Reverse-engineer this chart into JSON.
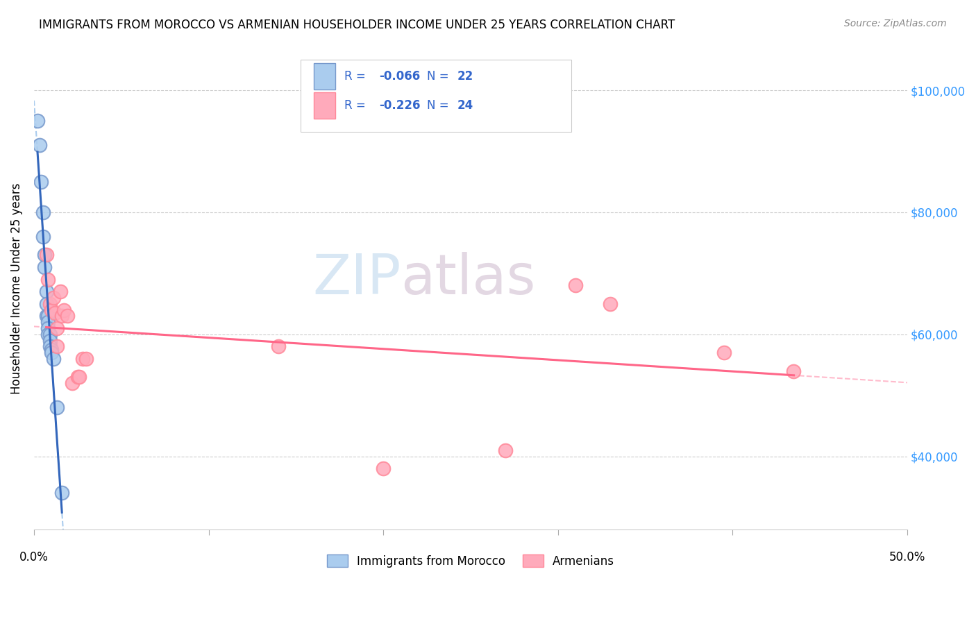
{
  "title": "IMMIGRANTS FROM MOROCCO VS ARMENIAN HOUSEHOLDER INCOME UNDER 25 YEARS CORRELATION CHART",
  "source": "Source: ZipAtlas.com",
  "ylabel": "Householder Income Under 25 years",
  "legend_label_blue": "Immigrants from Morocco",
  "legend_label_pink": "Armenians",
  "watermark_zip": "ZIP",
  "watermark_atlas": "atlas",
  "blue_color_face": "#aaccee",
  "blue_color_edge": "#7799CC",
  "pink_color_face": "#ffaabb",
  "pink_color_edge": "#FF8899",
  "blue_line_color": "#3366BB",
  "pink_line_color": "#FF6688",
  "blue_dash_color": "#aaccee",
  "pink_dash_color": "#ffbbcc",
  "right_tick_color": "#3399FF",
  "background": "#FFFFFF",
  "blue_x": [
    0.002,
    0.003,
    0.004,
    0.005,
    0.005,
    0.006,
    0.006,
    0.007,
    0.007,
    0.007,
    0.008,
    0.008,
    0.008,
    0.008,
    0.009,
    0.009,
    0.009,
    0.01,
    0.01,
    0.011,
    0.013,
    0.016
  ],
  "blue_y": [
    95000,
    91000,
    85000,
    80000,
    76000,
    73000,
    71000,
    67000,
    65000,
    63000,
    63000,
    62000,
    61000,
    60000,
    60000,
    59000,
    58000,
    57500,
    57000,
    56000,
    48000,
    34000
  ],
  "pink_x": [
    0.007,
    0.008,
    0.009,
    0.01,
    0.011,
    0.012,
    0.013,
    0.013,
    0.015,
    0.016,
    0.017,
    0.019,
    0.022,
    0.025,
    0.026,
    0.028,
    0.03,
    0.14,
    0.2,
    0.27,
    0.31,
    0.33,
    0.395,
    0.435
  ],
  "pink_y": [
    73000,
    69000,
    65000,
    64000,
    66000,
    63500,
    61000,
    58000,
    67000,
    63000,
    64000,
    63000,
    52000,
    53000,
    53000,
    56000,
    56000,
    58000,
    38000,
    41000,
    68000,
    65000,
    57000,
    54000
  ],
  "xlim": [
    0.0,
    0.5
  ],
  "ylim": [
    28000,
    107000
  ],
  "yticks": [
    40000,
    60000,
    80000,
    100000
  ],
  "right_ytick_labels": [
    "$40,000",
    "$60,000",
    "$80,000",
    "$100,000"
  ],
  "title_fontsize": 12,
  "source_fontsize": 10,
  "ylabel_fontsize": 12,
  "tick_fontsize": 12,
  "legend_r_blue": "-0.066",
  "legend_n_blue": "22",
  "legend_r_pink": "-0.226",
  "legend_n_pink": "24"
}
